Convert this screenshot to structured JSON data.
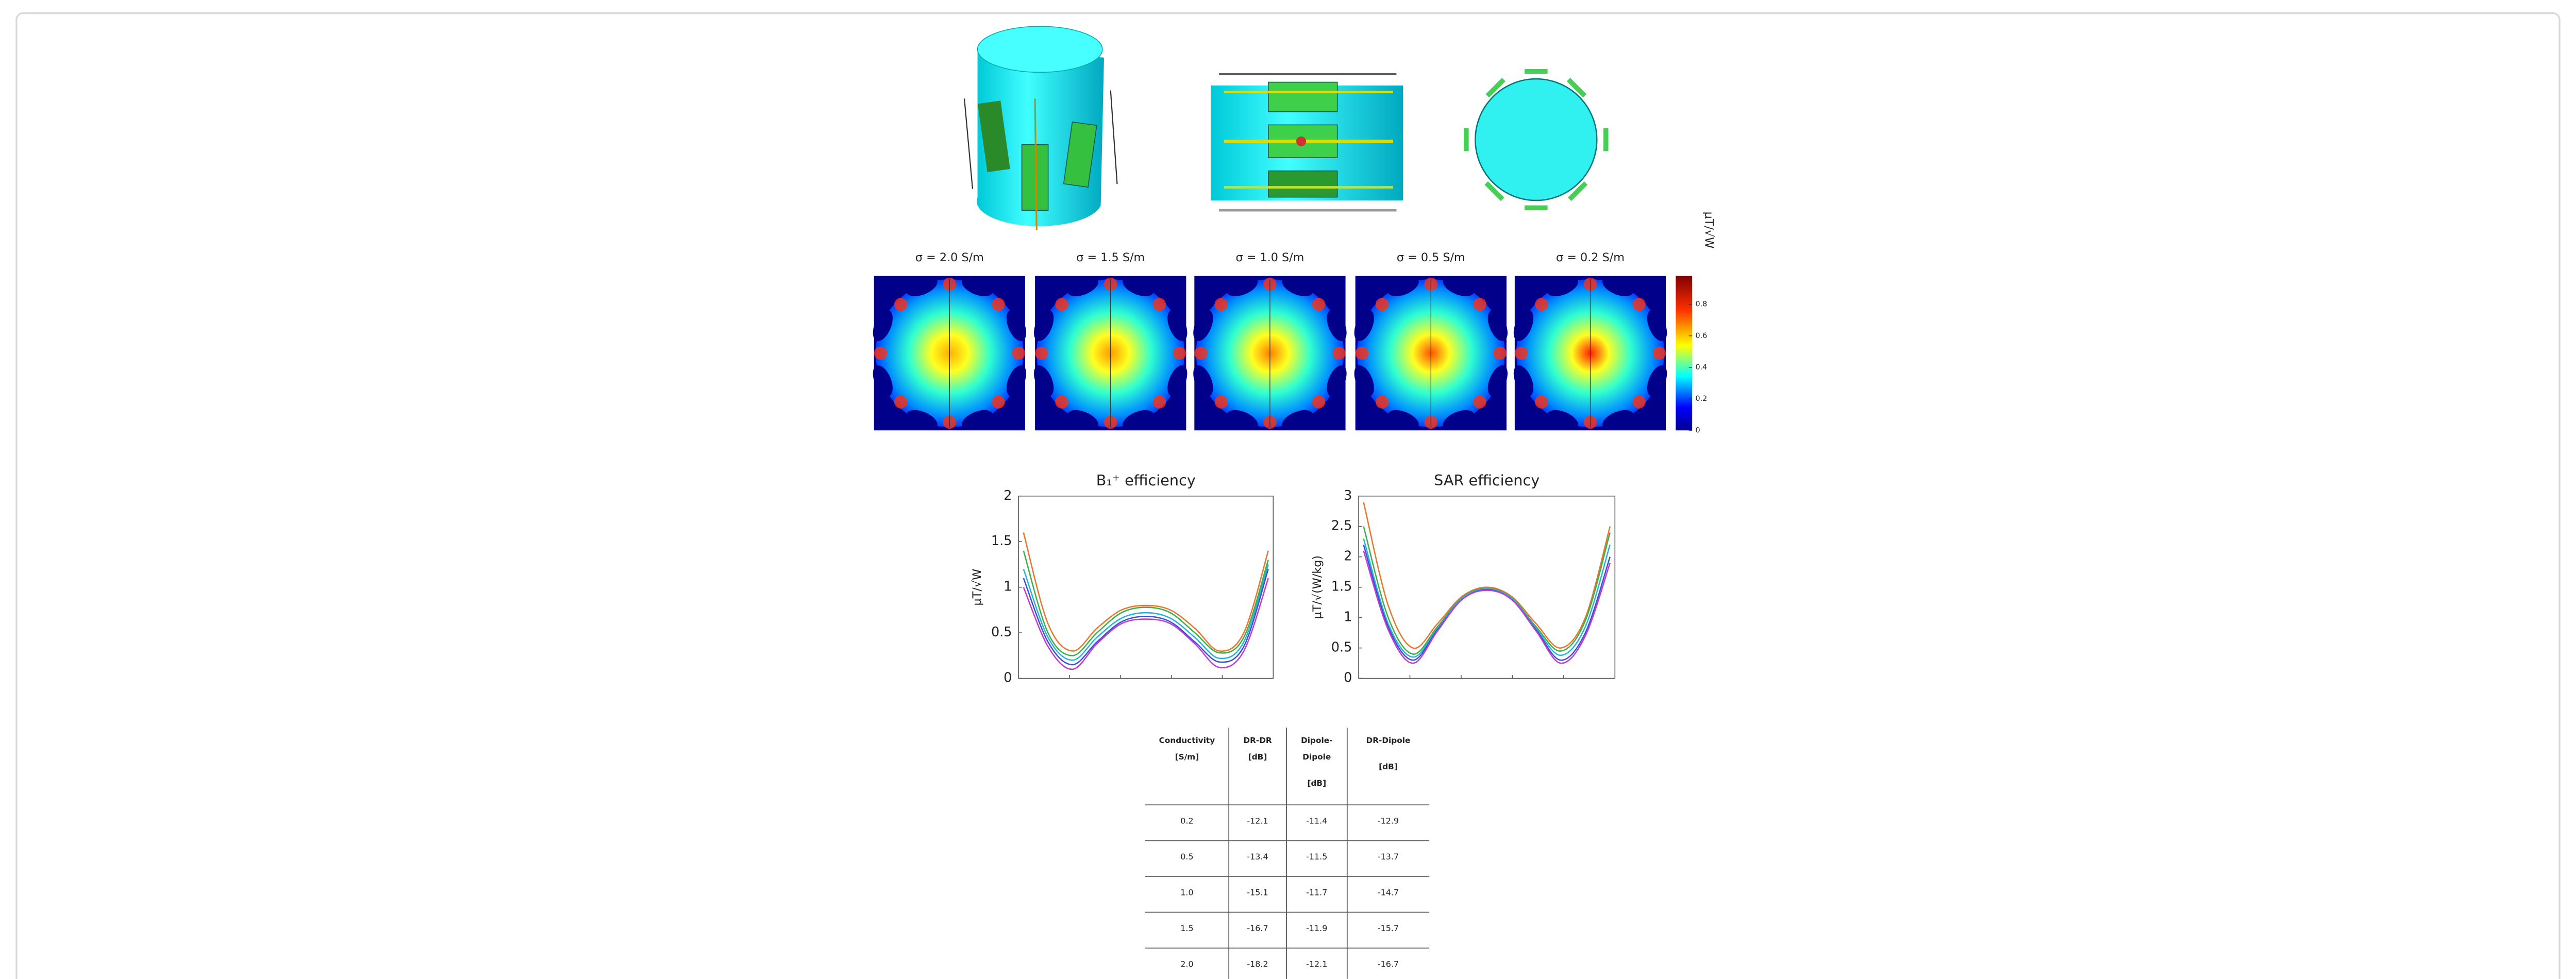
{
  "figure": {
    "sigma_labels": [
      "σ = 2.0 S/m",
      "σ = 1.5 S/m",
      "σ = 1.0 S/m",
      "σ = 0.5 S/m",
      "σ = 0.2 S/m"
    ],
    "colorbar": {
      "label": "μT/√W",
      "lim": [
        0,
        0.98
      ],
      "ticks": [
        0,
        0.2,
        0.4,
        0.6,
        0.8
      ]
    }
  },
  "chart_data": [
    {
      "type": "line",
      "title": "B₁⁺ efficiency",
      "y_label": "μT/√W",
      "ylim": [
        0,
        2
      ],
      "yticks": [
        0,
        0.5,
        1,
        1.5,
        2
      ],
      "series": [
        {
          "color": "#e8762c",
          "values": [
            1.6,
            0.6,
            0.3,
            0.55,
            0.75,
            0.8,
            0.75,
            0.55,
            0.3,
            0.5,
            1.4
          ]
        },
        {
          "color": "#3cb04a",
          "values": [
            1.4,
            0.5,
            0.25,
            0.5,
            0.72,
            0.78,
            0.72,
            0.5,
            0.28,
            0.45,
            1.3
          ]
        },
        {
          "color": "#27b3d6",
          "values": [
            1.2,
            0.45,
            0.2,
            0.45,
            0.66,
            0.72,
            0.66,
            0.45,
            0.22,
            0.4,
            1.25
          ]
        },
        {
          "color": "#3a4fd8",
          "values": [
            1.1,
            0.4,
            0.15,
            0.4,
            0.62,
            0.68,
            0.62,
            0.4,
            0.18,
            0.35,
            1.2
          ]
        },
        {
          "color": "#c23bd1",
          "values": [
            1.0,
            0.35,
            0.1,
            0.38,
            0.6,
            0.65,
            0.6,
            0.38,
            0.12,
            0.3,
            1.1
          ]
        }
      ]
    },
    {
      "type": "line",
      "title": "SAR efficiency",
      "y_label": "μT/√(W/kg)",
      "ylim": [
        0,
        3
      ],
      "yticks": [
        0,
        0.5,
        1,
        1.5,
        2,
        2.5,
        3
      ],
      "series": [
        {
          "color": "#e8762c",
          "values": [
            2.9,
            1.2,
            0.5,
            0.9,
            1.35,
            1.5,
            1.35,
            0.9,
            0.5,
            1.0,
            2.5
          ]
        },
        {
          "color": "#3cb04a",
          "values": [
            2.5,
            1.0,
            0.4,
            0.85,
            1.33,
            1.48,
            1.33,
            0.85,
            0.45,
            0.95,
            2.4
          ]
        },
        {
          "color": "#27b3d6",
          "values": [
            2.3,
            0.9,
            0.35,
            0.82,
            1.32,
            1.47,
            1.32,
            0.82,
            0.38,
            0.85,
            2.2
          ]
        },
        {
          "color": "#3a4fd8",
          "values": [
            2.2,
            0.85,
            0.3,
            0.8,
            1.3,
            1.46,
            1.3,
            0.8,
            0.3,
            0.75,
            2.0
          ]
        },
        {
          "color": "#c23bd1",
          "values": [
            2.1,
            0.8,
            0.25,
            0.78,
            1.3,
            1.45,
            1.3,
            0.78,
            0.25,
            0.7,
            1.9
          ]
        }
      ]
    }
  ],
  "table": {
    "header": [
      [
        "Conductivity",
        "[S/m]"
      ],
      [
        "DR-DR",
        "[dB]"
      ],
      [
        "Dipole-",
        "Dipole",
        "[dB]"
      ],
      [
        "DR-Dipole",
        "[dB]"
      ]
    ],
    "rows": [
      [
        "0.2",
        "-12.1",
        "-11.4",
        "-12.9"
      ],
      [
        "0.5",
        "-13.4",
        "-11.5",
        "-13.7"
      ],
      [
        "1.0",
        "-15.1",
        "-11.7",
        "-14.7"
      ],
      [
        "1.5",
        "-16.7",
        "-11.9",
        "-15.7"
      ],
      [
        "2.0",
        "-18.2",
        "-12.1",
        "-16.7"
      ]
    ]
  }
}
